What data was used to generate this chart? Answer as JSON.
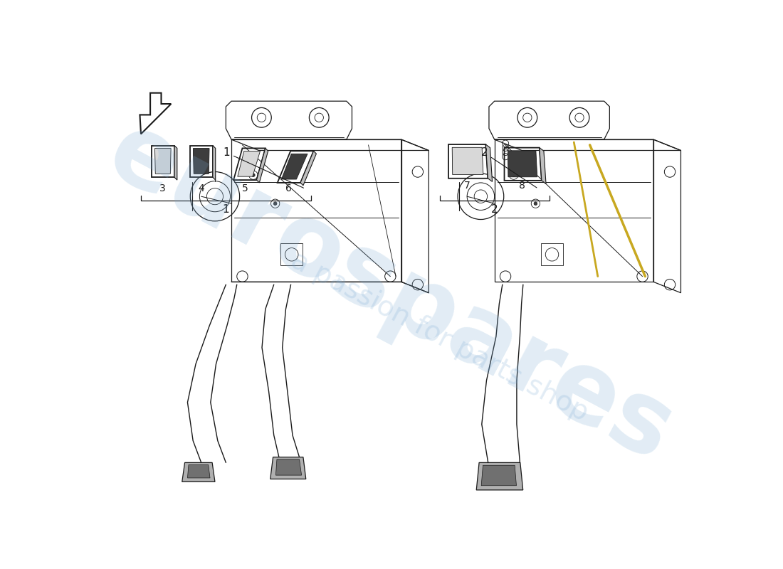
{
  "bg_color": "#ffffff",
  "line_color": "#1a1a1a",
  "dark_fill": "#3d3d3d",
  "mid_fill": "#707070",
  "light_fill": "#b0b0b0",
  "yellow_line": "#c8a820",
  "watermark_text": "eurospares",
  "watermark_sub": "a passion for parts shop",
  "watermark_color": "#7aaad4",
  "watermark_alpha": 0.22,
  "label_1": "1",
  "label_2": "2",
  "label_3": "3",
  "label_4": "4",
  "label_5": "5",
  "label_6": "6",
  "label_7": "7",
  "label_8": "8",
  "bracket_1": "1",
  "bracket_2": "2",
  "arrow_color": "#1a1a1a"
}
